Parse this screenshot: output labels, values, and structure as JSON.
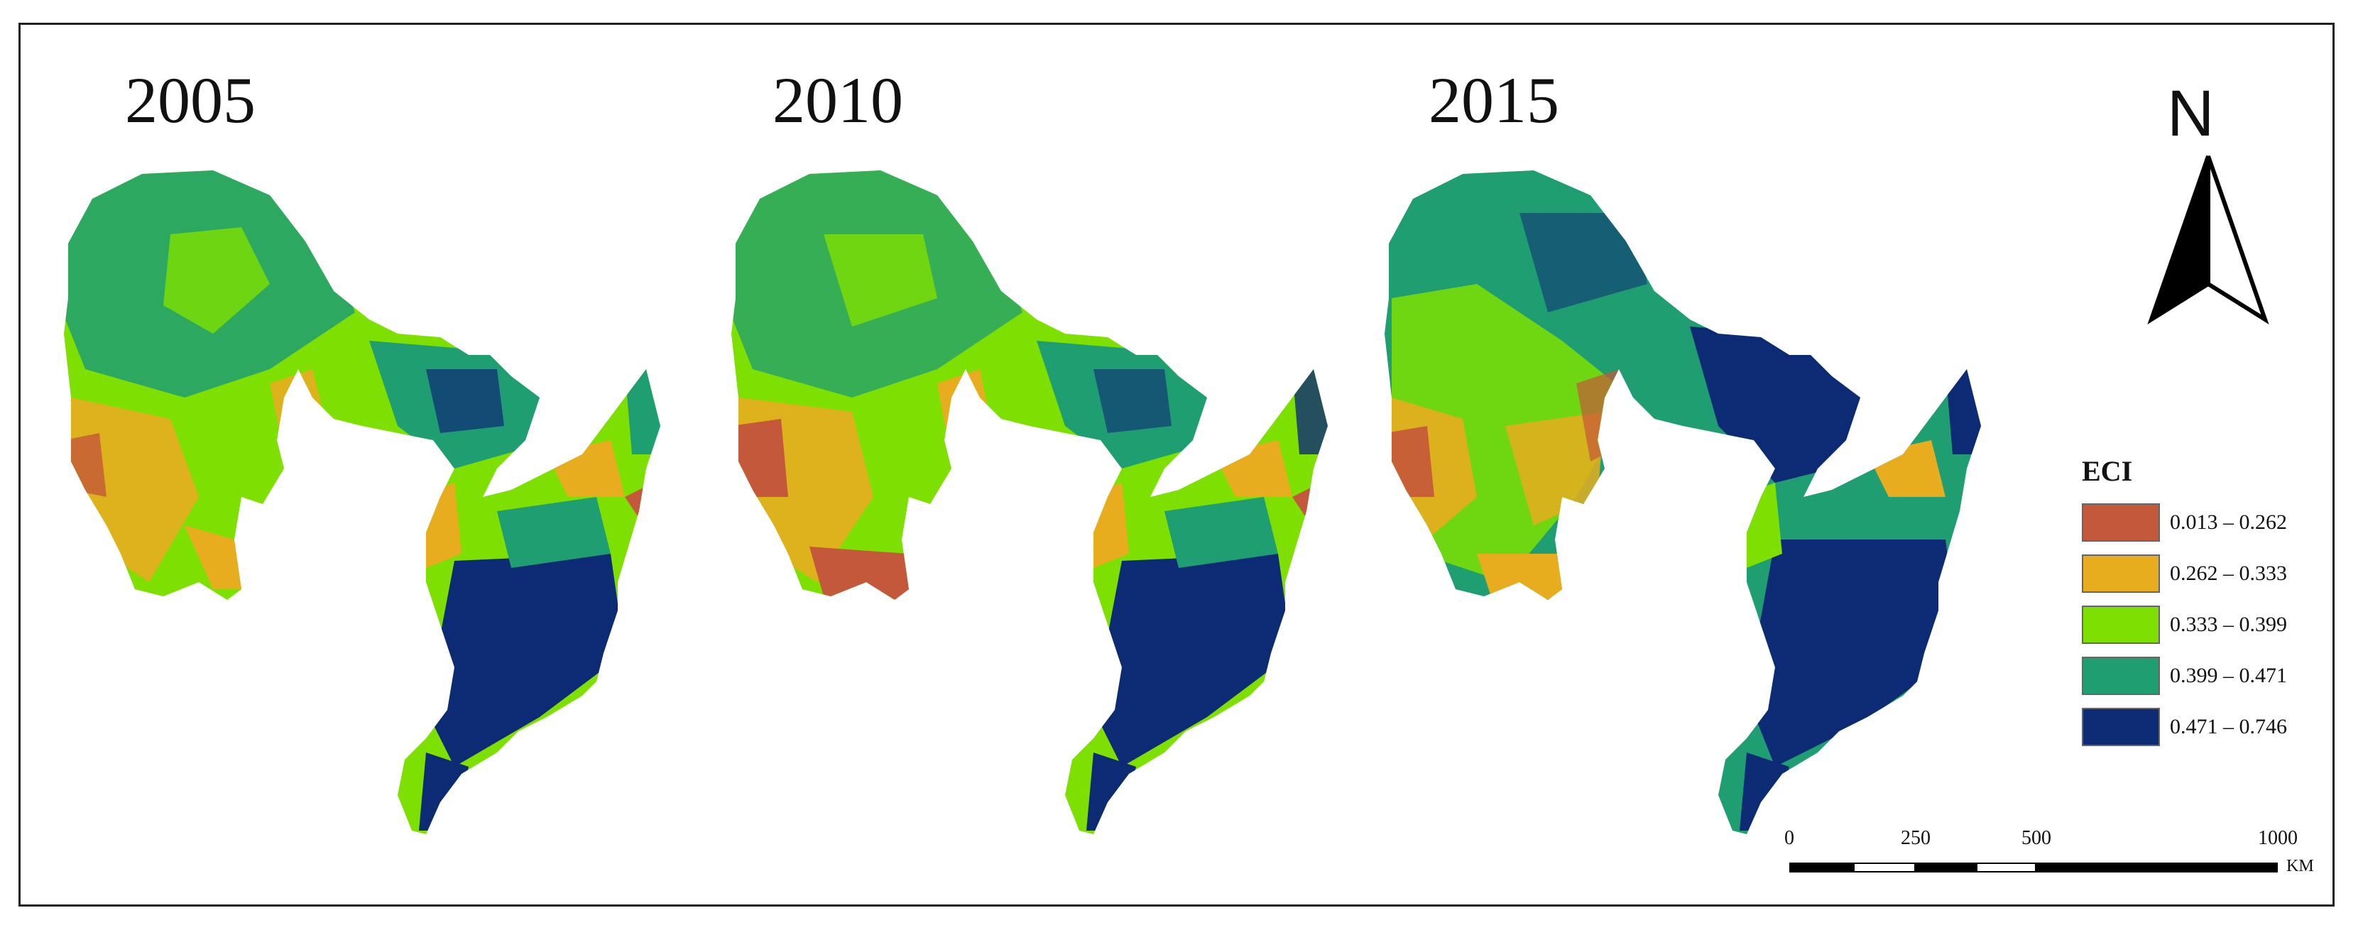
{
  "panels": [
    {
      "year": "2005"
    },
    {
      "year": "2010"
    },
    {
      "year": "2015"
    }
  ],
  "north_arrow": {
    "label": "N"
  },
  "legend": {
    "title": "ECI",
    "items": [
      {
        "label": "0.013 – 0.262",
        "color": "#c4583a"
      },
      {
        "label": "0.262 – 0.333",
        "color": "#e8ad1f"
      },
      {
        "label": "0.333 – 0.399",
        "color": "#7ee000"
      },
      {
        "label": "0.399 – 0.471",
        "color": "#1f9e72"
      },
      {
        "label": "0.471 – 0.746",
        "color": "#0d2a75"
      }
    ]
  },
  "scale_bar": {
    "ticks": [
      "0",
      "250",
      "500",
      "1000"
    ],
    "unit": "KM"
  }
}
